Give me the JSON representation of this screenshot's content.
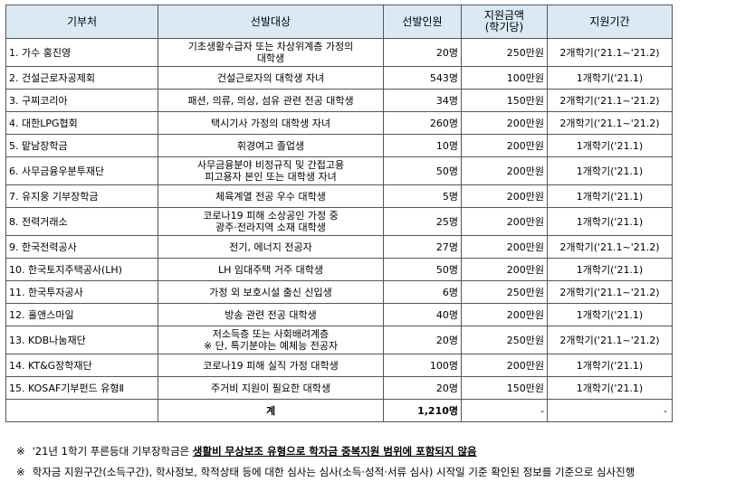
{
  "header": {
    "donor": "기부처",
    "target": "선발대상",
    "count": "선발인원",
    "amount_line1": "지원금액",
    "amount_line2": "(학기당)",
    "period": "지원기간"
  },
  "rows": [
    {
      "donor": "1. 가수 홍진영",
      "target": [
        "기초생활수급자 또는 차상위계층 가정의",
        "대학생"
      ],
      "count": "20명",
      "amount": "250만원",
      "period": "2개학기('21.1~'21.2)"
    },
    {
      "donor": "2. 건설근로자공제회",
      "target": [
        "건설근로자의 대학생 자녀"
      ],
      "count": "543명",
      "amount": "100만원",
      "period": "1개학기('21.1)"
    },
    {
      "donor": "3. 구찌코리아",
      "target": [
        "패션, 의류, 의상, 섬유 관련 전공 대학생"
      ],
      "count": "34명",
      "amount": "150만원",
      "period": "2개학기('21.1~'21.2)"
    },
    {
      "donor": "4. 대한LPG협회",
      "target": [
        "택시기사 가정의 대학생 자녀"
      ],
      "count": "260명",
      "amount": "200만원",
      "period": "2개학기('21.1~'21.2)"
    },
    {
      "donor": "5. 맡남장학금",
      "target": [
        "휘경여고 졸업생"
      ],
      "count": "10명",
      "amount": "200만원",
      "period": "1개학기('21.1)"
    },
    {
      "donor": "6. 사무금융우분투재단",
      "target": [
        "사무금융분야 비정규직 및 간접고용",
        "피고용자 본인 또는 대학생 자녀"
      ],
      "count": "50명",
      "amount": "200만원",
      "period": "1개학기('21.1)"
    },
    {
      "donor": "7. 유지웅 기부장학금",
      "target": [
        "체육계열 전공 우수 대학생"
      ],
      "count": "5명",
      "amount": "200만원",
      "period": "1개학기('21.1)"
    },
    {
      "donor": "8. 전력거래소",
      "target": [
        "코로나19 피해 소상공인 가정 중",
        "광주·전라지역 소재 대학생"
      ],
      "count": "25명",
      "amount": "200만원",
      "period": "1개학기('21.1)"
    },
    {
      "donor": "9. 한국전력공사",
      "target": [
        "전기, 에너지 전공자"
      ],
      "count": "27명",
      "amount": "200만원",
      "period": "2개학기('21.1~'21.2)"
    },
    {
      "donor": "10. 한국토지주택공사(LH)",
      "target": [
        "LH 임대주택 거주 대학생"
      ],
      "count": "50명",
      "amount": "200만원",
      "period": "1개학기('21.1)"
    },
    {
      "donor": "11. 한국투자공사",
      "target": [
        "가정 외 보호시설 출신 신입생"
      ],
      "count": "6명",
      "amount": "250만원",
      "period": "2개학기('21.1~'21.2)"
    },
    {
      "donor": "12. 홀앤스마일",
      "target": [
        "방송 관련 전공 대학생"
      ],
      "count": "40명",
      "amount": "200만원",
      "period": "1개학기('21.1)"
    },
    {
      "donor": "13. KDB나눔재단",
      "target": [
        "저소득층 또는 사회배려계층",
        "※ 단, 특기분야는 예체능 전공자"
      ],
      "count": "20명",
      "amount": "250만원",
      "period": "2개학기('21.1~'21.2)"
    },
    {
      "donor": "14. KT&G장학재단",
      "target": [
        "코로나19 피해 실직 가정 대학생"
      ],
      "count": "100명",
      "amount": "200만원",
      "period": "1개학기('21.1)"
    },
    {
      "donor": "15. KOSAF기부펀드 유형Ⅱ",
      "target": [
        "주거비 지원이 필요한 대학생"
      ],
      "count": "20명",
      "amount": "150만원",
      "period": "1개학기('21.1)"
    }
  ],
  "total": {
    "label": "계",
    "count": "1,210명",
    "amount": "-",
    "period": "-"
  },
  "notes": [
    {
      "mark": "※",
      "pre": "'21년 1학기 푸른등대 기부장학금은 ",
      "emph": "생활비 무상보조 유형으로 학자금 중복지원 범위에 포함되지 않음",
      "post": ""
    },
    {
      "mark": "※",
      "pre": "학자금 지원구간(소득구간), 학사정보, 학적상태 등에 대한 심사는 심사(소득·성적·서류 심사) 시작일 기준 확인된 정보를 기준으로 심사진행",
      "emph": "",
      "post": ""
    }
  ]
}
